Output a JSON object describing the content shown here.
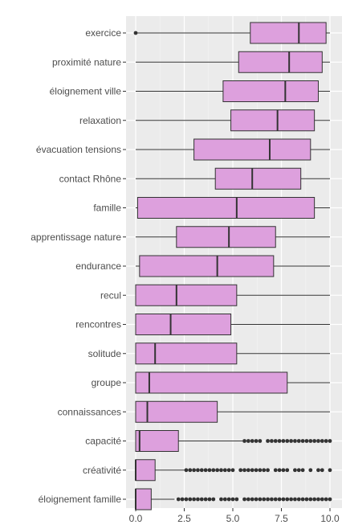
{
  "chart_data": {
    "type": "boxplot",
    "orientation": "horizontal",
    "grid": true,
    "xlim": [
      0,
      10
    ],
    "x_ticks": [
      "0.0",
      "2.5",
      "5.0",
      "7.5",
      "10.0"
    ],
    "x_tick_values": [
      0,
      2.5,
      5,
      7.5,
      10
    ],
    "colors": {
      "box_fill": "#DDA0DD",
      "box_stroke": "#333333",
      "panel": "#EBEBEB",
      "grid_major": "#FFFFFF",
      "outlier": "#333333"
    },
    "categories": [
      "exercice",
      "proximité nature",
      "éloignement ville",
      "relaxation",
      "évacuation tensions",
      "contact Rhône",
      "famille",
      "apprentissage nature",
      "endurance",
      "recul",
      "rencontres",
      "solitude",
      "groupe",
      "connaissances",
      "capacité",
      "créativité",
      "éloignement famille"
    ],
    "boxes": [
      {
        "min": 0.0,
        "q1": 5.9,
        "median": 8.4,
        "q3": 9.8,
        "max": 10.0,
        "outliers": [
          0.0
        ]
      },
      {
        "min": 0.0,
        "q1": 5.3,
        "median": 7.9,
        "q3": 9.6,
        "max": 10.0,
        "outliers": []
      },
      {
        "min": 0.0,
        "q1": 4.5,
        "median": 7.7,
        "q3": 9.4,
        "max": 10.0,
        "outliers": []
      },
      {
        "min": 0.0,
        "q1": 4.9,
        "median": 7.3,
        "q3": 9.2,
        "max": 10.0,
        "outliers": []
      },
      {
        "min": 0.0,
        "q1": 3.0,
        "median": 6.9,
        "q3": 9.0,
        "max": 10.0,
        "outliers": []
      },
      {
        "min": 0.0,
        "q1": 4.1,
        "median": 6.0,
        "q3": 8.5,
        "max": 10.0,
        "outliers": []
      },
      {
        "min": 0.0,
        "q1": 0.1,
        "median": 5.2,
        "q3": 9.2,
        "max": 10.0,
        "outliers": []
      },
      {
        "min": 0.0,
        "q1": 2.1,
        "median": 4.8,
        "q3": 7.2,
        "max": 10.0,
        "outliers": []
      },
      {
        "min": 0.0,
        "q1": 0.2,
        "median": 4.2,
        "q3": 7.1,
        "max": 10.0,
        "outliers": []
      },
      {
        "min": 0.0,
        "q1": 0.0,
        "median": 2.1,
        "q3": 5.2,
        "max": 10.0,
        "outliers": []
      },
      {
        "min": 0.0,
        "q1": 0.0,
        "median": 1.8,
        "q3": 4.9,
        "max": 10.0,
        "outliers": []
      },
      {
        "min": 0.0,
        "q1": 0.0,
        "median": 1.0,
        "q3": 5.2,
        "max": 10.0,
        "outliers": []
      },
      {
        "min": 0.0,
        "q1": 0.0,
        "median": 0.7,
        "q3": 7.8,
        "max": 10.0,
        "outliers": []
      },
      {
        "min": 0.0,
        "q1": 0.0,
        "median": 0.6,
        "q3": 4.2,
        "max": 10.0,
        "outliers": []
      },
      {
        "min": 0.0,
        "q1": 0.0,
        "median": 0.2,
        "q3": 2.2,
        "max": 5.5,
        "outliers": [
          5.6,
          5.8,
          6.0,
          6.2,
          6.4,
          6.8,
          7.0,
          7.2,
          7.4,
          7.6,
          7.8,
          8.0,
          8.2,
          8.4,
          8.6,
          8.8,
          9.0,
          9.2,
          9.4,
          9.6,
          9.8,
          10.0
        ]
      },
      {
        "min": 0.0,
        "q1": 0.0,
        "median": 0.0,
        "q3": 1.0,
        "max": 2.5,
        "outliers": [
          2.6,
          2.8,
          3.0,
          3.2,
          3.4,
          3.6,
          3.8,
          4.0,
          4.2,
          4.4,
          4.6,
          4.8,
          5.0,
          5.4,
          5.6,
          5.8,
          6.0,
          6.2,
          6.4,
          6.6,
          6.8,
          7.2,
          7.4,
          7.6,
          7.8,
          8.2,
          8.4,
          8.6,
          9.0,
          9.4,
          9.6,
          10.0
        ]
      },
      {
        "min": 0.0,
        "q1": 0.0,
        "median": 0.0,
        "q3": 0.8,
        "max": 2.0,
        "outliers": [
          2.2,
          2.4,
          2.6,
          2.8,
          3.0,
          3.2,
          3.4,
          3.6,
          3.8,
          4.0,
          4.4,
          4.6,
          4.8,
          5.0,
          5.2,
          5.6,
          5.8,
          6.0,
          6.2,
          6.4,
          6.6,
          6.8,
          7.0,
          7.2,
          7.4,
          7.6,
          7.8,
          8.0,
          8.2,
          8.4,
          8.6,
          8.8,
          9.0,
          9.2,
          9.4,
          9.6,
          9.8,
          10.0
        ]
      }
    ]
  }
}
